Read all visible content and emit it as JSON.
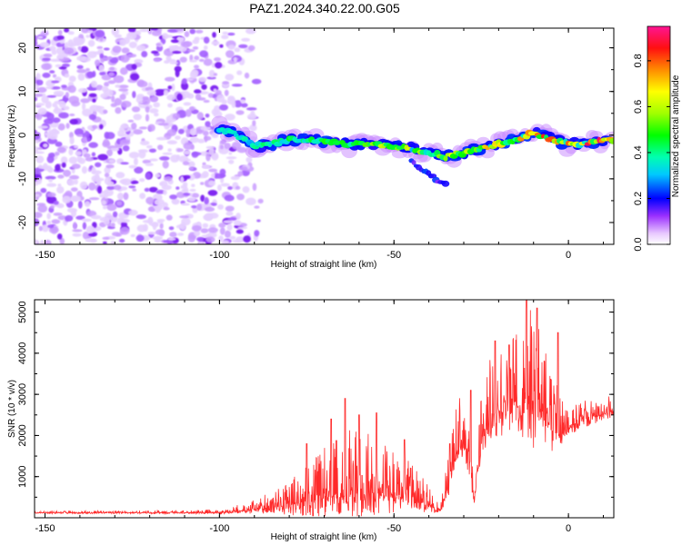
{
  "title": "PAZ1.2024.340.22.00.G05",
  "chart_data": [
    {
      "type": "heatmap",
      "xlabel": "Height of straight line (km)",
      "ylabel": "Frequency (Hz)",
      "xlim": [
        -153,
        13
      ],
      "ylim": [
        -25,
        24.5
      ],
      "xticks": [
        -150,
        -100,
        -50,
        0
      ],
      "yticks": [
        -20,
        -10,
        0,
        10,
        20
      ],
      "colorbar": {
        "label": "Normalized spectral amplitude",
        "range": [
          0.0,
          0.95
        ],
        "ticks": [
          "0.0",
          "0.2",
          "0.4",
          "0.6",
          "0.8"
        ]
      },
      "noise_region_x": [
        -153,
        -88
      ],
      "ridge": {
        "x": [
          -100,
          -95,
          -90,
          -85,
          -80,
          -75,
          -70,
          -65,
          -60,
          -55,
          -50,
          -45,
          -40,
          -35,
          -30,
          -25,
          -20,
          -15,
          -10,
          -5,
          0,
          5,
          13
        ],
        "y": [
          1.5,
          0,
          -2.5,
          -2,
          -1,
          -1,
          -1.5,
          -2,
          -2,
          -2,
          -2.5,
          -3,
          -4,
          -5,
          -4,
          -3,
          -2,
          -1,
          0.5,
          -1,
          -2,
          -2,
          -1
        ]
      },
      "branch": {
        "x": [
          -45,
          -40,
          -35
        ],
        "y": [
          -6,
          -9,
          -11.5
        ]
      }
    },
    {
      "type": "line",
      "xlabel": "Height of straight line (km)",
      "ylabel": "SNR (10 * v/v)",
      "xlim": [
        -153,
        13
      ],
      "ylim": [
        0,
        5300
      ],
      "xticks": [
        -150,
        -100,
        -50,
        0
      ],
      "yticks": [
        1000,
        2000,
        3000,
        4000,
        5000
      ],
      "line_color": "#ff2a2a",
      "envelope": {
        "x": [
          -153,
          -130,
          -110,
          -100,
          -95,
          -90,
          -85,
          -80,
          -75,
          -70,
          -65,
          -60,
          -55,
          -50,
          -45,
          -40,
          -37,
          -35,
          -32,
          -30,
          -28,
          -27,
          -25,
          -22,
          -20,
          -15,
          -12,
          -10,
          -8,
          -5,
          -2,
          0,
          5,
          13
        ],
        "base": [
          120,
          120,
          120,
          130,
          160,
          200,
          260,
          300,
          400,
          500,
          550,
          600,
          600,
          500,
          450,
          300,
          150,
          600,
          1600,
          2000,
          1200,
          300,
          2000,
          2500,
          2600,
          2700,
          2800,
          2700,
          2700,
          2200,
          2000,
          2200,
          2400,
          2600
        ],
        "amp": [
          50,
          50,
          60,
          80,
          150,
          250,
          400,
          600,
          900,
          1300,
          1600,
          1500,
          1400,
          1100,
          900,
          500,
          200,
          600,
          1200,
          1100,
          900,
          100,
          1300,
          1600,
          1700,
          1800,
          2400,
          2500,
          1800,
          1500,
          900,
          500,
          500,
          400
        ]
      },
      "peaks": [
        {
          "x": -75,
          "y": 1800
        },
        {
          "x": -68,
          "y": 2400
        },
        {
          "x": -64,
          "y": 2900
        },
        {
          "x": -60,
          "y": 2500
        },
        {
          "x": -55,
          "y": 2550
        },
        {
          "x": -47,
          "y": 1900
        },
        {
          "x": -34,
          "y": 1800
        },
        {
          "x": -28,
          "y": 3100
        },
        {
          "x": -21,
          "y": 4300
        },
        {
          "x": -17,
          "y": 4200
        },
        {
          "x": -12,
          "y": 5300
        },
        {
          "x": -9,
          "y": 5100
        },
        {
          "x": -3,
          "y": 4500
        }
      ]
    }
  ]
}
